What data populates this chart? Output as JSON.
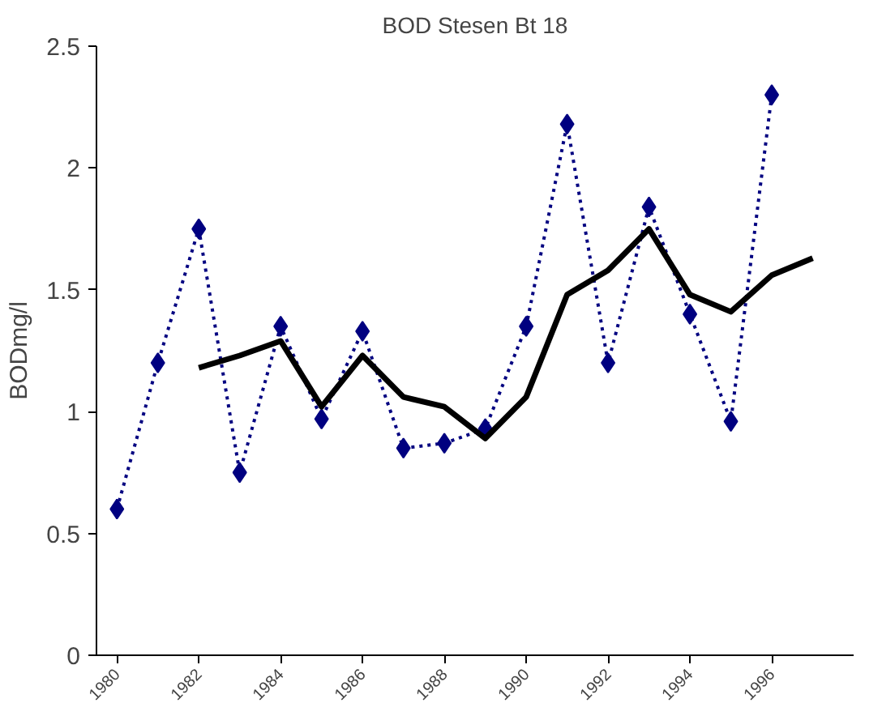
{
  "chart_data": {
    "type": "line",
    "title": "BOD Stesen Bt 18",
    "ylabel": "BODmg/l",
    "xlim": [
      1979.5,
      1998
    ],
    "xticks": [
      1980,
      1982,
      1984,
      1986,
      1988,
      1990,
      1992,
      1994,
      1996
    ],
    "ylim": [
      0,
      2.5
    ],
    "yticks": [
      0,
      0.5,
      1,
      1.5,
      2,
      2.5
    ],
    "grid": false,
    "series": [
      {
        "color": "#000080",
        "marker": "diamond",
        "line_style": "dotted",
        "x": [
          1980,
          1981,
          1982,
          1983,
          1984,
          1985,
          1986,
          1987,
          1988,
          1989,
          1990,
          1991,
          1992,
          1993,
          1994,
          1995,
          1996
        ],
        "values": [
          0.6,
          1.2,
          1.75,
          0.75,
          1.35,
          0.97,
          1.33,
          0.85,
          0.87,
          0.93,
          1.35,
          2.18,
          1.2,
          1.84,
          1.4,
          0.96,
          2.3
        ]
      },
      {
        "color": "#000000",
        "marker": "none",
        "line_style": "solid",
        "x": [
          1982,
          1983,
          1984,
          1985,
          1986,
          1987,
          1988,
          1989,
          1990,
          1991,
          1992,
          1993,
          1994,
          1995,
          1996,
          1997
        ],
        "values": [
          1.18,
          1.23,
          1.29,
          1.02,
          1.23,
          1.06,
          1.02,
          0.89,
          1.06,
          1.48,
          1.58,
          1.75,
          1.48,
          1.41,
          1.56,
          1.63
        ]
      }
    ]
  }
}
